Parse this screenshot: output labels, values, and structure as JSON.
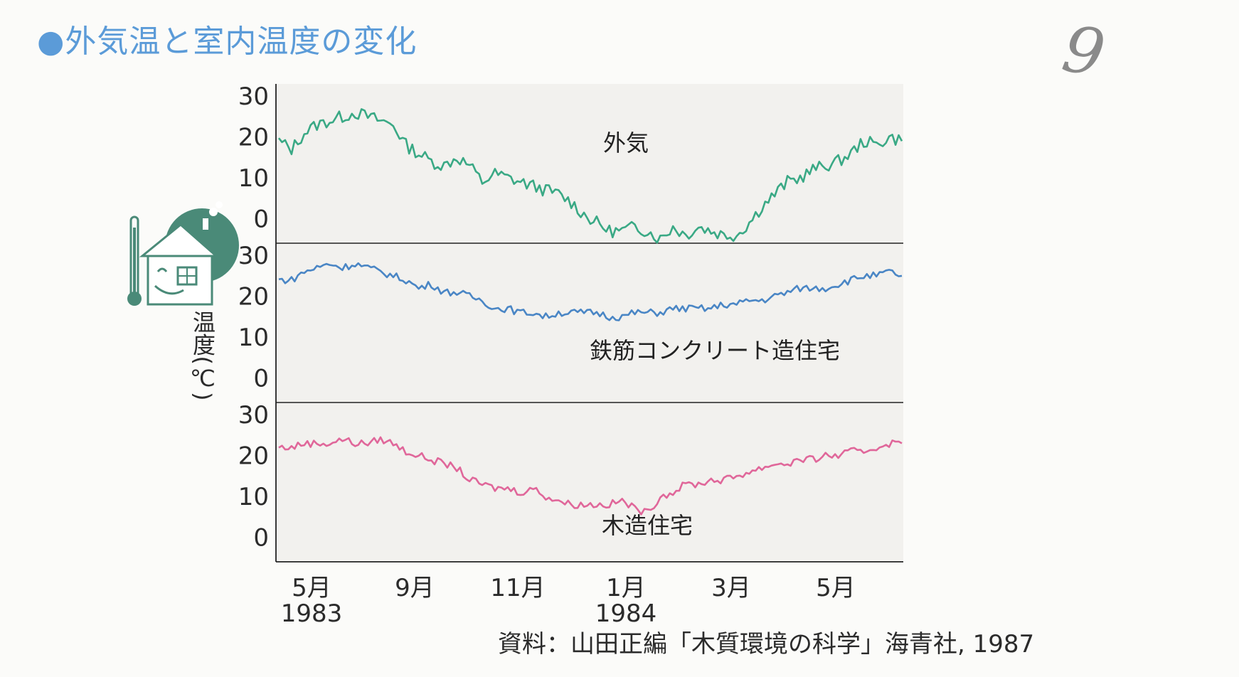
{
  "page": {
    "title": "●外気温と室内温度の変化",
    "page_number": "9",
    "source": "資料：山田正編「木質環境の科学」海青社, 1987",
    "y_axis_label": "温度(℃)"
  },
  "colors": {
    "title": "#5b9bd8",
    "outside": "#3aa985",
    "rc": "#4a86c5",
    "wood": "#e0679a",
    "icon": "#4a8a78"
  },
  "chart_data": {
    "type": "line",
    "title": "外気温と室内温度の変化",
    "ylabel": "温度(℃)",
    "x_ticks": [
      {
        "month": "5月",
        "year": "1983"
      },
      {
        "month": "9月",
        "year": ""
      },
      {
        "month": "11月",
        "year": ""
      },
      {
        "month": "1月",
        "year": "1984"
      },
      {
        "month": "3月",
        "year": ""
      },
      {
        "month": "5月",
        "year": ""
      }
    ],
    "y_ticks": [
      "30",
      "20",
      "10",
      "0"
    ],
    "panels": [
      {
        "name": "外気",
        "color_key": "outside",
        "ylim": [
          -6,
          33
        ],
        "values": [
          19,
          17,
          21,
          23,
          24,
          25,
          26,
          25,
          24,
          23,
          18,
          16,
          14,
          13,
          15,
          13,
          9,
          11,
          10,
          9,
          8,
          7,
          6,
          4,
          1,
          -1,
          -3,
          -3,
          -2,
          -3,
          -5,
          -2,
          -4,
          -2,
          -3,
          -4,
          -4,
          -1,
          3,
          6,
          9,
          10,
          12,
          13,
          14,
          16,
          19,
          18,
          20,
          19
        ]
      },
      {
        "name": "鉄筋コンクリート造住宅",
        "color_key": "rc",
        "ylim": [
          -6,
          33
        ],
        "values": [
          24,
          24,
          26,
          27,
          28,
          27,
          28,
          27,
          26,
          25,
          24,
          22,
          23,
          21,
          21,
          20,
          19,
          17,
          17,
          16,
          16,
          15,
          16,
          16,
          16,
          16,
          15,
          15,
          16,
          16,
          16,
          17,
          17,
          17,
          17,
          18,
          18,
          19,
          19,
          20,
          21,
          22,
          22,
          22,
          23,
          24,
          25,
          25,
          26,
          25
        ]
      },
      {
        "name": "木造住宅",
        "color_key": "wood",
        "ylim": [
          -6,
          33
        ],
        "values": [
          22,
          22,
          23,
          23,
          23,
          24,
          23,
          23,
          24,
          23,
          21,
          20,
          19,
          18,
          17,
          14,
          13,
          12,
          12,
          11,
          12,
          10,
          9,
          8,
          8,
          8,
          8,
          9,
          7,
          6,
          10,
          11,
          13,
          13,
          14,
          14,
          15,
          16,
          17,
          18,
          18,
          19,
          19,
          20,
          20,
          21,
          21,
          22,
          23,
          23
        ]
      }
    ],
    "grid": false,
    "legend": "labels inside panels"
  }
}
